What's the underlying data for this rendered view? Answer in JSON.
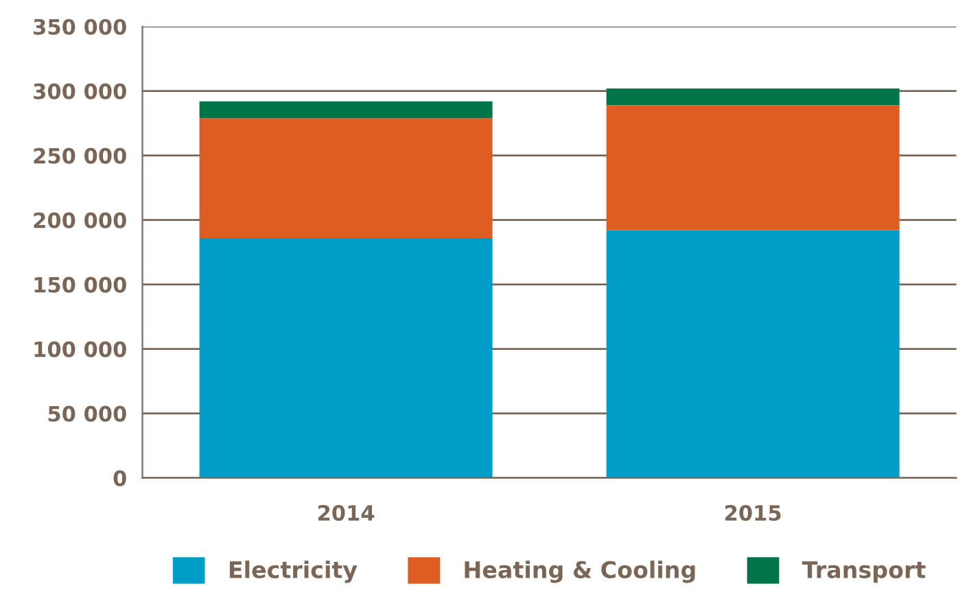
{
  "chart_data": {
    "type": "bar",
    "stacked": true,
    "categories": [
      "2014",
      "2015"
    ],
    "series": [
      {
        "name": "Electricity",
        "color": "#009dc8",
        "values": [
          186000,
          192000
        ]
      },
      {
        "name": "Heating & Cooling",
        "color": "#de5d23",
        "values": [
          93000,
          97000
        ]
      },
      {
        "name": "Transport",
        "color": "#007548",
        "values": [
          13000,
          13000
        ]
      }
    ],
    "ylim": [
      0,
      350000
    ],
    "yticks": [
      {
        "value": 0,
        "label": "0"
      },
      {
        "value": 50000,
        "label": "50 000"
      },
      {
        "value": 100000,
        "label": "100 000"
      },
      {
        "value": 150000,
        "label": "150 000"
      },
      {
        "value": 200000,
        "label": "200 000"
      },
      {
        "value": 250000,
        "label": "250 000"
      },
      {
        "value": 300000,
        "label": "300 000"
      },
      {
        "value": 350000,
        "label": "350 000"
      }
    ],
    "grid": "y",
    "legend": "bottom"
  }
}
